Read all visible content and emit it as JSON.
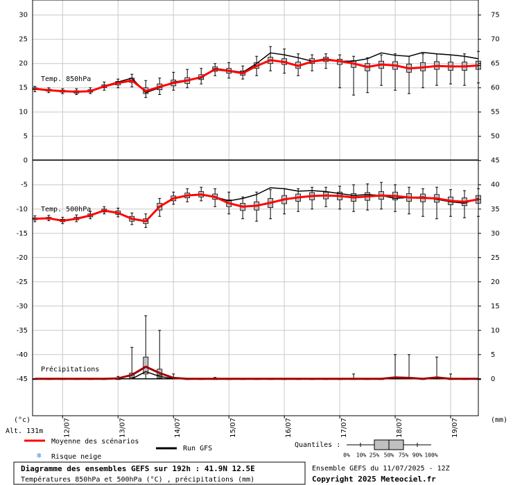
{
  "chart_data": {
    "type": "boxplot",
    "title": "Diagramme des ensembles GEFS sur 192h : 41.9N 12.5E",
    "subtitle": "Températures 850hPa et 500hPa (°C) , précipitations (mm)",
    "y_label": "(°c)",
    "y2_label": "(mm)",
    "altitude": "Alt. 131m",
    "run_label": "Ensemble GEFS du 11/07/2025 - 12Z",
    "copyright": "Copyright 2025 Meteociel.fr",
    "x": [
      0,
      6,
      12,
      18,
      24,
      30,
      36,
      42,
      48,
      54,
      60,
      66,
      72,
      78,
      84,
      90,
      96,
      102,
      108,
      114,
      120,
      126,
      132,
      138,
      144,
      150,
      156,
      162,
      168,
      174,
      180,
      186,
      192
    ],
    "xlim": [
      -1,
      192
    ],
    "xticks": [
      {
        "value": 12,
        "label": "12/07"
      },
      {
        "value": 36,
        "label": "13/07"
      },
      {
        "value": 60,
        "label": "14/07"
      },
      {
        "value": 84,
        "label": "15/07"
      },
      {
        "value": 108,
        "label": "16/07"
      },
      {
        "value": 132,
        "label": "17/07"
      },
      {
        "value": 156,
        "label": "18/07"
      },
      {
        "value": 180,
        "label": "19/07"
      }
    ],
    "ylim": [
      -52.6,
      33.1
    ],
    "yticks": [
      -45,
      -40,
      -35,
      -30,
      -25,
      -20,
      -15,
      -10,
      -5,
      0,
      5,
      10,
      15,
      20,
      25,
      30
    ],
    "y2lim": [
      -7.6,
      78.1
    ],
    "y2ticks": [
      0,
      5,
      10,
      15,
      20,
      25,
      30,
      35,
      40,
      45,
      50,
      55,
      60,
      65,
      70,
      75
    ],
    "grid": true,
    "legend": {
      "snow": "Risque neige",
      "quantiles_title": "Quantiles :",
      "quantiles": [
        "0%",
        "10%",
        "25%",
        "50%",
        "75%",
        "90%",
        "100%"
      ]
    },
    "groups": [
      {
        "label": "Temp. 850hPa",
        "axis": "y",
        "box_color": "#c0c0c0",
        "boxes": [
          [
            14.2,
            14.6,
            14.8,
            15.0,
            15.3
          ],
          [
            14.0,
            14.3,
            14.5,
            14.7,
            15.0
          ],
          [
            13.8,
            14.1,
            14.3,
            14.5,
            14.8
          ],
          [
            13.6,
            13.9,
            14.1,
            14.4,
            14.8
          ],
          [
            13.8,
            14.1,
            14.3,
            14.6,
            15.0
          ],
          [
            14.5,
            15.0,
            15.3,
            15.6,
            16.2
          ],
          [
            15.0,
            15.6,
            16.0,
            16.3,
            16.8
          ],
          [
            15.2,
            16.1,
            16.6,
            17.0,
            17.8
          ],
          [
            13.0,
            13.8,
            14.4,
            15.0,
            16.5
          ],
          [
            13.6,
            14.6,
            15.2,
            15.8,
            17.0
          ],
          [
            14.5,
            15.4,
            16.0,
            16.6,
            18.2
          ],
          [
            15.0,
            15.9,
            16.5,
            17.1,
            18.8
          ],
          [
            15.8,
            16.7,
            17.2,
            17.7,
            19.0
          ],
          [
            17.5,
            18.4,
            18.9,
            19.3,
            20.0
          ],
          [
            17.0,
            18.0,
            18.5,
            19.0,
            20.2
          ],
          [
            16.8,
            17.6,
            18.0,
            18.5,
            19.5
          ],
          [
            17.5,
            19.0,
            19.6,
            20.2,
            21.5
          ],
          [
            18.5,
            20.0,
            20.7,
            21.3,
            23.5
          ],
          [
            18.0,
            19.8,
            20.4,
            21.0,
            23.0
          ],
          [
            17.5,
            19.0,
            19.6,
            20.3,
            22.0
          ],
          [
            18.5,
            20.0,
            20.5,
            21.0,
            21.8
          ],
          [
            19.0,
            20.4,
            20.8,
            21.3,
            22.0
          ],
          [
            15.0,
            19.8,
            20.4,
            20.9,
            21.8
          ],
          [
            13.5,
            19.2,
            20.0,
            20.6,
            21.5
          ],
          [
            14.0,
            18.5,
            19.3,
            20.0,
            21.2
          ],
          [
            15.5,
            19.0,
            19.8,
            20.5,
            21.8
          ],
          [
            14.5,
            18.8,
            19.6,
            20.4,
            22.0
          ],
          [
            13.8,
            18.2,
            19.0,
            19.9,
            21.5
          ],
          [
            15.0,
            18.5,
            19.3,
            20.2,
            22.0
          ],
          [
            15.5,
            18.8,
            19.6,
            20.4,
            22.0
          ],
          [
            15.8,
            18.6,
            19.5,
            20.3,
            21.8
          ],
          [
            15.5,
            18.6,
            19.4,
            20.3,
            22.0
          ],
          [
            16.0,
            18.8,
            19.6,
            20.5,
            22.5
          ]
        ],
        "series": [
          {
            "name": "Moyenne des scénarios",
            "color": "#ff0000",
            "values": [
              14.8,
              14.5,
              14.3,
              14.2,
              14.3,
              15.3,
              16.0,
              16.5,
              14.3,
              15.2,
              16.0,
              16.5,
              17.2,
              18.8,
              18.5,
              18.0,
              19.5,
              20.7,
              20.3,
              19.5,
              20.4,
              20.8,
              20.5,
              20.0,
              19.3,
              19.8,
              19.6,
              19.0,
              19.2,
              19.5,
              19.4,
              19.4,
              19.6
            ]
          },
          {
            "name": "Run GFS",
            "color": "#000000",
            "values": [
              14.8,
              14.5,
              14.3,
              14.2,
              14.3,
              15.4,
              16.2,
              17.0,
              14.0,
              15.0,
              16.2,
              16.6,
              17.0,
              19.0,
              18.6,
              18.2,
              20.0,
              22.2,
              21.8,
              21.2,
              20.5,
              21.0,
              20.5,
              20.5,
              21.0,
              22.2,
              21.7,
              21.5,
              22.3,
              22.0,
              21.8,
              21.5,
              21.0
            ]
          }
        ]
      },
      {
        "label": "Temp. 500hPa",
        "axis": "y",
        "box_color": "#c0c0c0",
        "boxes": [
          [
            -12.6,
            -12.2,
            -12.0,
            -11.8,
            -11.4
          ],
          [
            -12.4,
            -12.1,
            -11.9,
            -11.7,
            -11.3
          ],
          [
            -13.0,
            -12.6,
            -12.4,
            -12.1,
            -11.7
          ],
          [
            -12.6,
            -12.2,
            -12.0,
            -11.7,
            -11.2
          ],
          [
            -12.0,
            -11.6,
            -11.3,
            -11.0,
            -10.5
          ],
          [
            -11.0,
            -10.6,
            -10.3,
            -10.0,
            -9.5
          ],
          [
            -11.6,
            -11.1,
            -10.8,
            -10.4,
            -9.8
          ],
          [
            -13.2,
            -12.5,
            -12.0,
            -11.5,
            -10.8
          ],
          [
            -13.8,
            -13.0,
            -12.5,
            -12.0,
            -11.0
          ],
          [
            -11.5,
            -10.2,
            -9.5,
            -8.8,
            -7.8
          ],
          [
            -9.0,
            -8.3,
            -7.8,
            -7.3,
            -6.5
          ],
          [
            -8.5,
            -7.7,
            -7.2,
            -6.7,
            -5.8
          ],
          [
            -8.3,
            -7.5,
            -7.0,
            -6.4,
            -5.5
          ],
          [
            -9.5,
            -8.0,
            -7.5,
            -6.9,
            -5.8
          ],
          [
            -11.0,
            -9.5,
            -8.8,
            -8.1,
            -6.5
          ],
          [
            -12.0,
            -10.3,
            -9.5,
            -8.8,
            -7.5
          ],
          [
            -12.5,
            -10.2,
            -9.3,
            -8.5,
            -6.5
          ],
          [
            -12.0,
            -9.7,
            -8.7,
            -7.8,
            -6.0
          ],
          [
            -11.0,
            -8.9,
            -8.0,
            -7.2,
            -5.8
          ],
          [
            -10.5,
            -8.4,
            -7.6,
            -6.9,
            -5.8
          ],
          [
            -10.0,
            -8.1,
            -7.3,
            -6.6,
            -5.5
          ],
          [
            -9.5,
            -7.9,
            -7.2,
            -6.5,
            -5.5
          ],
          [
            -10.0,
            -8.1,
            -7.3,
            -6.5,
            -5.3
          ],
          [
            -10.5,
            -8.4,
            -7.6,
            -6.8,
            -5.0
          ],
          [
            -10.2,
            -8.2,
            -7.4,
            -6.6,
            -4.8
          ],
          [
            -10.0,
            -8.0,
            -7.2,
            -6.4,
            -4.5
          ],
          [
            -10.5,
            -8.1,
            -7.3,
            -6.5,
            -5.0
          ],
          [
            -11.0,
            -8.4,
            -7.6,
            -6.8,
            -5.5
          ],
          [
            -11.5,
            -8.5,
            -7.7,
            -6.9,
            -5.8
          ],
          [
            -12.0,
            -8.6,
            -7.8,
            -7.0,
            -5.5
          ],
          [
            -11.5,
            -9.1,
            -8.3,
            -7.5,
            -6.0
          ],
          [
            -11.8,
            -9.3,
            -8.5,
            -7.7,
            -6.2
          ],
          [
            -11.5,
            -8.8,
            -8.0,
            -7.2,
            -5.8
          ]
        ],
        "series": [
          {
            "name": "Moyenne des scénarios",
            "color": "#ff0000",
            "values": [
              -12.0,
              -11.9,
              -12.4,
              -12.0,
              -11.3,
              -10.3,
              -10.8,
              -12.0,
              -12.5,
              -9.5,
              -7.8,
              -7.2,
              -7.0,
              -7.5,
              -8.8,
              -9.5,
              -9.3,
              -8.7,
              -8.0,
              -7.6,
              -7.3,
              -7.2,
              -7.3,
              -7.6,
              -7.4,
              -7.2,
              -7.3,
              -7.6,
              -7.7,
              -7.8,
              -8.3,
              -8.5,
              -8.0
            ]
          },
          {
            "name": "Run GFS",
            "color": "#000000",
            "values": [
              -12.0,
              -11.9,
              -12.4,
              -12.0,
              -11.3,
              -10.3,
              -10.8,
              -12.0,
              -12.5,
              -9.5,
              -7.8,
              -7.2,
              -7.0,
              -7.5,
              -8.3,
              -7.8,
              -7.0,
              -5.6,
              -5.8,
              -6.3,
              -6.2,
              -6.4,
              -6.8,
              -7.2,
              -7.0,
              -7.2,
              -7.8,
              -7.6,
              -7.5,
              -8.0,
              -8.5,
              -8.8,
              -7.8
            ]
          }
        ]
      },
      {
        "label": "Précipitations",
        "axis": "y2",
        "box_color": "#c0c0c0",
        "boxes": [
          [
            0,
            0,
            0,
            0,
            0
          ],
          [
            0,
            0,
            0,
            0,
            0
          ],
          [
            0,
            0,
            0,
            0,
            0
          ],
          [
            0,
            0,
            0,
            0,
            0
          ],
          [
            0,
            0,
            0,
            0,
            0
          ],
          [
            0,
            0,
            0,
            0,
            0
          ],
          [
            0,
            0,
            0,
            0,
            0.5
          ],
          [
            0,
            0,
            0.3,
            1.2,
            6.5
          ],
          [
            0,
            1.0,
            2.5,
            4.5,
            13.0
          ],
          [
            0,
            0.2,
            0.8,
            2.0,
            10.0
          ],
          [
            0,
            0,
            0,
            0.3,
            1.0
          ],
          [
            0,
            0,
            0,
            0,
            0
          ],
          [
            0,
            0,
            0,
            0,
            0
          ],
          [
            0,
            0,
            0,
            0,
            0.3
          ],
          [
            0,
            0,
            0,
            0,
            0
          ],
          [
            0,
            0,
            0,
            0,
            0
          ],
          [
            0,
            0,
            0,
            0,
            0
          ],
          [
            0,
            0,
            0,
            0,
            0
          ],
          [
            0,
            0,
            0,
            0,
            0
          ],
          [
            0,
            0,
            0,
            0,
            0
          ],
          [
            0,
            0,
            0,
            0,
            0
          ],
          [
            0,
            0,
            0,
            0,
            0
          ],
          [
            0,
            0,
            0,
            0,
            0
          ],
          [
            0,
            0,
            0,
            0,
            1.0
          ],
          [
            0,
            0,
            0,
            0,
            0
          ],
          [
            0,
            0,
            0,
            0,
            0
          ],
          [
            0,
            0,
            0,
            0.3,
            5.0
          ],
          [
            0,
            0,
            0,
            0.2,
            5.0
          ],
          [
            0,
            0,
            0,
            0,
            0
          ],
          [
            0,
            0,
            0,
            0.3,
            4.5
          ],
          [
            0,
            0,
            0,
            0,
            1.0
          ],
          [
            0,
            0,
            0,
            0,
            0
          ],
          [
            0,
            0,
            0,
            0,
            0
          ]
        ],
        "series": [
          {
            "name": "Moyenne des scénarios",
            "color": "#a00000",
            "values": [
              0,
              0,
              0,
              0,
              0,
              0,
              0.1,
              0.8,
              2.5,
              1.2,
              0.2,
              0,
              0,
              0,
              0,
              0,
              0,
              0,
              0,
              0,
              0,
              0,
              0,
              0,
              0,
              0,
              0.3,
              0.2,
              0,
              0.3,
              0,
              0,
              0
            ]
          },
          {
            "name": "Run GFS",
            "color": "#000000",
            "values": [
              0,
              0,
              0,
              0,
              0,
              0,
              0,
              0,
              1.5,
              0.5,
              0,
              0,
              0,
              0,
              0,
              0,
              0,
              0,
              0,
              0,
              0,
              0,
              0,
              0,
              0,
              0,
              0,
              0,
              0,
              0,
              0,
              0,
              0
            ]
          }
        ]
      }
    ]
  }
}
